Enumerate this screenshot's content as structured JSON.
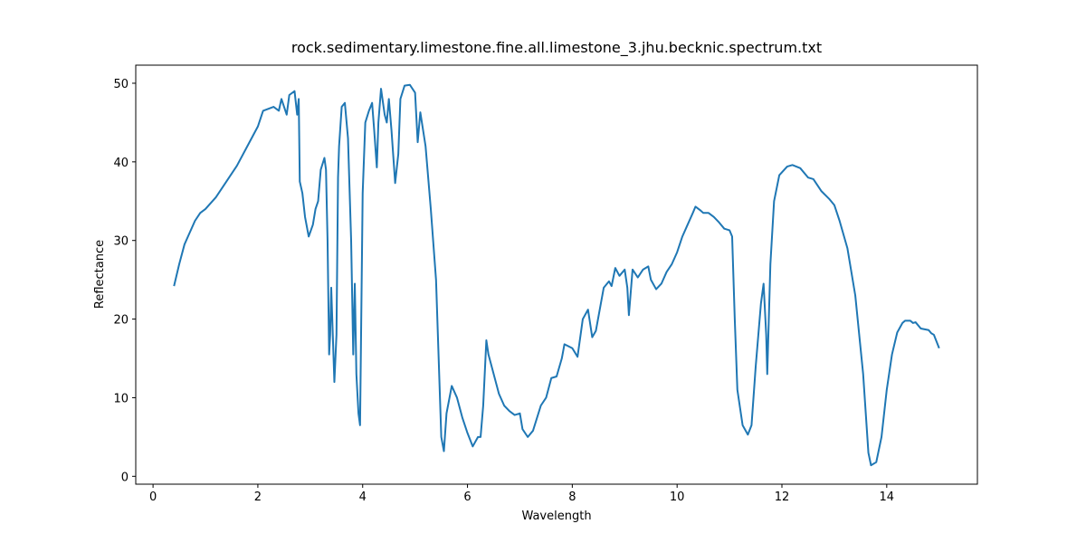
{
  "chart_data": {
    "type": "line",
    "title": "rock.sedimentary.limestone.fine.all.limestone_3.jhu.becknic.spectrum.txt",
    "x_label": "Wavelength",
    "y_label": "Reflectance",
    "color": "#1f77b4",
    "xlim": [
      -0.33,
      15.73
    ],
    "ylim": [
      -1.0,
      52.3
    ],
    "xticks": [
      0,
      2,
      4,
      6,
      8,
      10,
      12,
      14
    ],
    "yticks": [
      0,
      10,
      20,
      30,
      40,
      50
    ],
    "x": [
      0.4,
      0.5,
      0.6,
      0.7,
      0.8,
      0.9,
      1.0,
      1.2,
      1.4,
      1.6,
      1.8,
      2.0,
      2.1,
      2.3,
      2.4,
      2.45,
      2.55,
      2.6,
      2.7,
      2.75,
      2.78,
      2.8,
      2.85,
      2.9,
      2.97,
      3.05,
      3.1,
      3.15,
      3.2,
      3.27,
      3.3,
      3.33,
      3.36,
      3.38,
      3.4,
      3.42,
      3.46,
      3.5,
      3.53,
      3.55,
      3.6,
      3.66,
      3.72,
      3.78,
      3.82,
      3.85,
      3.88,
      3.92,
      3.95,
      4.0,
      4.05,
      4.12,
      4.18,
      4.22,
      4.27,
      4.3,
      4.35,
      4.42,
      4.46,
      4.5,
      4.55,
      4.62,
      4.68,
      4.72,
      4.8,
      4.9,
      5.0,
      5.05,
      5.1,
      5.2,
      5.3,
      5.4,
      5.45,
      5.5,
      5.55,
      5.6,
      5.7,
      5.8,
      5.9,
      6.0,
      6.1,
      6.2,
      6.25,
      6.3,
      6.36,
      6.4,
      6.5,
      6.6,
      6.7,
      6.8,
      6.9,
      7.0,
      7.05,
      7.15,
      7.25,
      7.4,
      7.5,
      7.6,
      7.7,
      7.8,
      7.85,
      8.0,
      8.1,
      8.2,
      8.3,
      8.38,
      8.45,
      8.6,
      8.7,
      8.75,
      8.82,
      8.9,
      9.0,
      9.05,
      9.08,
      9.15,
      9.25,
      9.35,
      9.45,
      9.5,
      9.6,
      9.7,
      9.8,
      9.9,
      10.0,
      10.1,
      10.2,
      10.3,
      10.35,
      10.45,
      10.5,
      10.6,
      10.7,
      10.8,
      10.9,
      11.0,
      11.05,
      11.1,
      11.15,
      11.25,
      11.35,
      11.42,
      11.5,
      11.6,
      11.65,
      11.7,
      11.72,
      11.78,
      11.85,
      11.95,
      12.1,
      12.2,
      12.35,
      12.5,
      12.6,
      12.75,
      12.9,
      13.0,
      13.1,
      13.25,
      13.4,
      13.55,
      13.65,
      13.7,
      13.8,
      13.9,
      14.0,
      14.1,
      14.2,
      14.3,
      14.35,
      14.45,
      14.5,
      14.55,
      14.65,
      14.8,
      14.85,
      14.9,
      15.0
    ],
    "values": [
      24.2,
      27,
      29.5,
      31,
      32.5,
      33.5,
      34,
      35.5,
      37.5,
      39.5,
      42,
      44.5,
      46.5,
      47,
      46.5,
      48,
      46,
      48.5,
      49,
      46,
      48,
      37.5,
      36,
      33,
      30.5,
      32,
      34,
      35,
      39,
      40.5,
      39,
      30,
      15.5,
      18,
      24,
      20,
      12,
      18,
      38,
      42,
      47,
      47.5,
      43,
      30,
      15.5,
      24.5,
      13,
      8,
      6.5,
      36,
      45,
      46.5,
      47.5,
      44,
      39.3,
      45,
      49.3,
      46,
      45,
      48,
      44,
      37.3,
      41,
      48,
      49.7,
      49.8,
      48.8,
      42.5,
      46.3,
      42,
      34,
      25,
      15,
      5,
      3.2,
      8,
      11.5,
      10,
      7.5,
      5.5,
      3.8,
      5,
      5,
      9,
      17.3,
      15.5,
      13,
      10.5,
      9,
      8.3,
      7.8,
      8,
      6,
      5,
      5.8,
      9,
      10,
      12.5,
      12.7,
      15,
      16.8,
      16.3,
      15.2,
      20,
      21.2,
      17.7,
      18.5,
      24,
      24.8,
      24.2,
      26.5,
      25.5,
      26.3,
      24,
      20.5,
      26.3,
      25.3,
      26.3,
      26.7,
      25,
      23.8,
      24.5,
      26,
      27,
      28.5,
      30.5,
      32,
      33.5,
      34.3,
      33.8,
      33.5,
      33.5,
      33,
      32.3,
      31.5,
      31.3,
      30.5,
      20,
      11,
      6.5,
      5.3,
      6.5,
      14,
      22,
      24.5,
      18,
      13,
      27,
      35,
      38.3,
      39.4,
      39.6,
      39.2,
      38,
      37.8,
      36.3,
      35.3,
      34.5,
      32.5,
      29,
      23,
      13,
      3,
      1.4,
      1.8,
      5,
      11,
      15.5,
      18.3,
      19.5,
      19.8,
      19.8,
      19.5,
      19.6,
      18.8,
      18.6,
      18.2,
      18,
      16.3
    ]
  }
}
